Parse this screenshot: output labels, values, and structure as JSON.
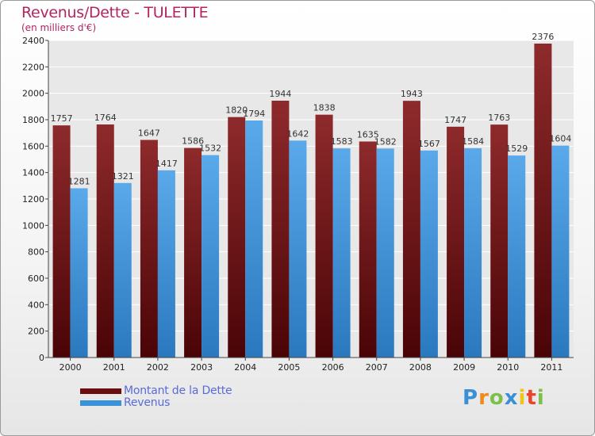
{
  "header": {
    "title": "Revenus/Dette - TULETTE",
    "subtitle": "(en milliers d'€)"
  },
  "chart_data": {
    "type": "bar",
    "title": "Revenus/Dette - TULETTE",
    "subtitle": "(en milliers d'€)",
    "xlabel": "",
    "ylabel": "",
    "categories": [
      "2000",
      "2001",
      "2002",
      "2003",
      "2004",
      "2005",
      "2006",
      "2007",
      "2008",
      "2009",
      "2010",
      "2011"
    ],
    "series": [
      {
        "name": "Montant de la Dette",
        "color": "#7a1416",
        "values": [
          1757,
          1764,
          1647,
          1586,
          1820,
          1944,
          1838,
          1635,
          1943,
          1747,
          1763,
          2376
        ]
      },
      {
        "name": "Revenus",
        "color": "#3a92d8",
        "values": [
          1281,
          1321,
          1417,
          1532,
          1794,
          1642,
          1583,
          1582,
          1567,
          1584,
          1529,
          1604
        ]
      }
    ],
    "ylim": [
      0,
      2400
    ],
    "yticks": [
      0,
      200,
      400,
      600,
      800,
      1000,
      1200,
      1400,
      1600,
      1800,
      2000,
      2200,
      2400
    ],
    "grid": true,
    "legend_position": "bottom-left",
    "data_labels": true
  },
  "legend": {
    "items": [
      {
        "label": "Montant de la Dette",
        "color": "#7a1416"
      },
      {
        "label": "Revenus",
        "color": "#3a92d8"
      }
    ]
  },
  "logo": {
    "letters": [
      "P",
      "r",
      "o",
      "x",
      "i",
      "t",
      "i"
    ],
    "colors": [
      "#3a8fd6",
      "#f08a1c",
      "#7cc04a",
      "#3a8fd6",
      "#f0c419",
      "#e8452c",
      "#7cc04a"
    ]
  }
}
